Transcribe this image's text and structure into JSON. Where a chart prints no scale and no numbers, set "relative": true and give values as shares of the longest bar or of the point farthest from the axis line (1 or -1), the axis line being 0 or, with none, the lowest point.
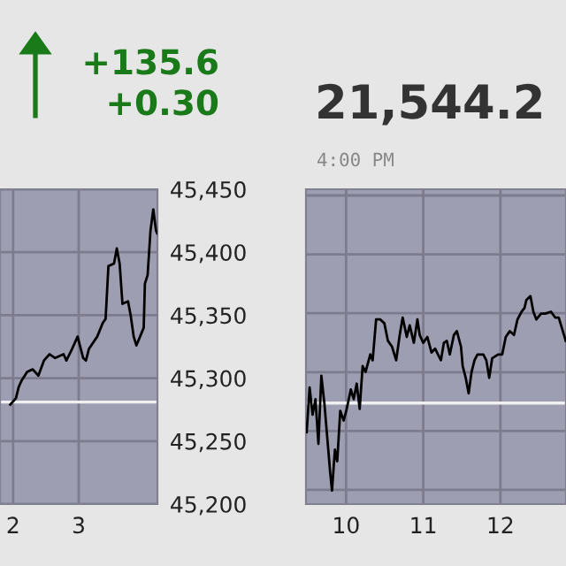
{
  "chart_data": [
    {
      "type": "line",
      "annotations": [
        "+135.6",
        "+0.30"
      ],
      "color": "#000000",
      "grid": true,
      "x": [
        1.957,
        2.043,
        2.085,
        2.128,
        2.214,
        2.299,
        2.385,
        2.47,
        2.556,
        2.641,
        2.769,
        2.812,
        2.897,
        2.983,
        3.068,
        3.111,
        3.154,
        3.282,
        3.368,
        3.41,
        3.453,
        3.538,
        3.581,
        3.624,
        3.667,
        3.752,
        3.795,
        3.838,
        3.88,
        3.991,
        4.009,
        4.051,
        4.094,
        4.137,
        4.179,
        4.197
      ],
      "values": [
        45279,
        45284,
        45293,
        45298,
        45305,
        45307,
        45302,
        45314,
        45319,
        45316,
        45319,
        45314,
        45323,
        45333,
        45316,
        45314,
        45323,
        45333,
        45344,
        45347,
        45389,
        45391,
        45403,
        45391,
        45359,
        45361,
        45349,
        45333,
        45326,
        45340,
        45375,
        45382,
        45417,
        45434,
        45417,
        45415
      ],
      "xlim": [
        1.8,
        4.2
      ],
      "xticks": [
        2,
        3
      ],
      "ylim": [
        45200,
        45450
      ],
      "yticks": [
        {
          "value": 45200,
          "label": "45,200"
        },
        {
          "value": 45250,
          "label": "45,250"
        },
        {
          "value": 45300,
          "label": "45,300"
        },
        {
          "value": 45350,
          "label": "45,350"
        },
        {
          "value": 45400,
          "label": "45,400"
        },
        {
          "value": 45450,
          "label": "45,450"
        }
      ],
      "ref_lines": [
        {
          "axis": "y",
          "value": 45281,
          "color": "#f0f0f0"
        }
      ]
    },
    {
      "type": "line",
      "subtitle": "21,544.2",
      "annotations": [
        "4:00 PM"
      ],
      "color": "#000000",
      "grid": true,
      "relative": true,
      "tick_labels": "x",
      "x": [
        9.489,
        9.527,
        9.565,
        9.603,
        9.641,
        9.679,
        9.718,
        9.756,
        9.794,
        9.817,
        9.855,
        9.885,
        9.924,
        9.969,
        10.008,
        10.061,
        10.099,
        10.137,
        10.176,
        10.214,
        10.252,
        10.313,
        10.344,
        10.389,
        10.443,
        10.496,
        10.542,
        10.595,
        10.649,
        10.695,
        10.733,
        10.786,
        10.824,
        10.878,
        10.924,
        10.954,
        11.0,
        11.053,
        11.107,
        11.153,
        11.191,
        11.229,
        11.267,
        11.305,
        11.344,
        11.397,
        11.435,
        11.489,
        11.511,
        11.55,
        11.588,
        11.626,
        11.664,
        11.702,
        11.779,
        11.817,
        11.855,
        11.893,
        11.969,
        12.023,
        12.069,
        12.122,
        12.176,
        12.221,
        12.275,
        12.313,
        12.336,
        12.389,
        12.427,
        12.466,
        12.527,
        12.58,
        12.656,
        12.71,
        12.756,
        12.809,
        12.847
      ],
      "values": [
        0.3,
        0.53,
        0.39,
        0.47,
        0.24,
        0.59,
        0.45,
        0.27,
        0.09,
        0,
        0.21,
        0.15,
        0.41,
        0.36,
        0.42,
        0.52,
        0.47,
        0.55,
        0.42,
        0.64,
        0.61,
        0.7,
        0.67,
        0.88,
        0.88,
        0.86,
        0.77,
        0.74,
        0.67,
        0.8,
        0.89,
        0.79,
        0.85,
        0.76,
        0.88,
        0.8,
        0.76,
        0.79,
        0.71,
        0.73,
        0.7,
        0.67,
        0.76,
        0.77,
        0.7,
        0.8,
        0.82,
        0.74,
        0.64,
        0.58,
        0.5,
        0.61,
        0.67,
        0.7,
        0.7,
        0.67,
        0.58,
        0.68,
        0.7,
        0.7,
        0.79,
        0.82,
        0.8,
        0.88,
        0.92,
        0.94,
        0.98,
        1.0,
        0.92,
        0.88,
        0.91,
        0.91,
        0.92,
        0.89,
        0.89,
        0.82,
        0.77
      ],
      "xlim": [
        9.48,
        12.85
      ],
      "xticks": [
        10,
        11,
        12
      ],
      "ref_lines": [
        {
          "axis": "y",
          "value": 0.45,
          "color": "#f0f0f0"
        }
      ]
    }
  ]
}
